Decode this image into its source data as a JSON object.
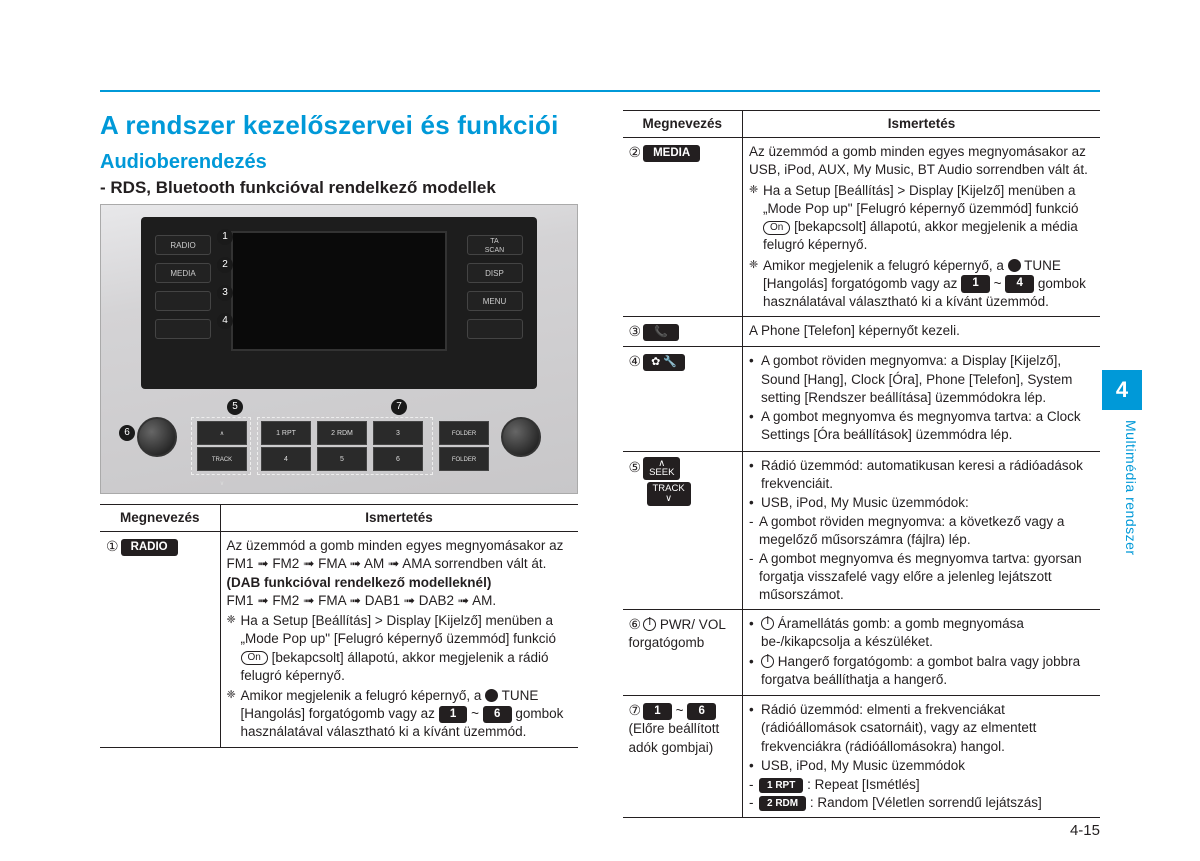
{
  "title": "A rendszer kezelőszervei és funkciói",
  "subtitle": "Audioberendezés",
  "subtitle2": "- RDS, Bluetooth funkcióval rendelkező modellek",
  "header_name": "Megnevezés",
  "header_desc": "Ismertetés",
  "chapter": "4",
  "side_text": "Multimédia rendszer",
  "pagenum": "4-15",
  "photo_labels": {
    "radio": "RADIO",
    "media": "MEDIA",
    "ta": "TA\nSCAN",
    "disp": "DISP",
    "menu": "MENU"
  },
  "left_rows": [
    {
      "circ": "①",
      "label": "RADIO",
      "body": [
        {
          "t": "p",
          "v": "Az üzemmód a gomb minden egyes megnyomásakor az FM1 ➟ FM2 ➟ FMA ➟ AM ➟ AMA sorrendben vált át."
        },
        {
          "t": "b",
          "v": "(DAB funkcióval rendelkező modelleknél)"
        },
        {
          "t": "p",
          "v": "FM1 ➟ FM2 ➟ FMA ➟ DAB1 ➟ DAB2 ➟ AM."
        },
        {
          "t": "note",
          "v": "Ha a Setup [Beállítás] > Display [Kijelző] menüben a „Mode Pop up\" [Felugró képernyő üzemmód] funkció <on>On</on> [bekapcsolt] állapotú, akkor megjelenik a rádió felugró képernyő."
        },
        {
          "t": "note",
          "v": "Amikor megjelenik a felugró képernyő, a <tune></tune> TUNE [Hangolás] forgatógomb vagy az <k>1</k> ~ <k>6</k> gombok használatával választható ki a kívánt üzemmód."
        }
      ]
    }
  ],
  "right_rows": [
    {
      "circ": "②",
      "label": "MEDIA",
      "body": [
        {
          "t": "p",
          "v": "Az üzemmód a gomb minden egyes megnyomásakor az USB, iPod, AUX, My Music, BT Audio sorrendben vált át."
        },
        {
          "t": "note",
          "v": "Ha a Setup [Beállítás] > Display [Kijelző] menüben a „Mode Pop up\" [Felugró képernyő üzemmód] funkció <on>On</on> [bekapcsolt] állapotú, akkor megjelenik a média felugró képernyő."
        },
        {
          "t": "note",
          "v": "Amikor megjelenik a felugró képernyő, a <tune></tune> TUNE [Hangolás] forgatógomb vagy az <k>1</k> ~ <k>4</k> gombok használatával választható ki a kívánt üzemmód."
        }
      ]
    },
    {
      "circ": "③",
      "icon": "phone",
      "body": [
        {
          "t": "p",
          "v": "A Phone [Telefon] képernyőt kezeli."
        }
      ]
    },
    {
      "circ": "④",
      "icon": "setup",
      "body": [
        {
          "t": "ul",
          "items": [
            "A gombot röviden megnyomva: a Display [Kijelző], Sound [Hang], Clock [Óra], Phone [Telefon], System setting [Rendszer beállítása] üzemmódokra lép.",
            "A gombot megnyomva és megnyomva tartva: a Clock Settings [Óra beállítások] üzemmódra lép."
          ]
        }
      ]
    },
    {
      "circ": "⑤",
      "seek": true,
      "body": [
        {
          "t": "ul",
          "items": [
            "Rádió üzemmód: automatikusan keresi a rádióadások frekvenciáit.",
            "USB, iPod, My Music üzemmódok:"
          ]
        },
        {
          "t": "dash",
          "items": [
            "A gombot röviden megnyomva: a következő vagy a megelőző műsorszámra (fájlra) lép.",
            "A gombot megnyomva és megnyomva tartva: gyorsan forgatja visszafelé vagy előre a jelenleg lejátszott műsorszámot."
          ]
        }
      ]
    },
    {
      "circ": "⑥",
      "pwr": true,
      "pwr_label": " PWR/ VOL for­gató­gomb",
      "body": [
        {
          "t": "ul_pwr",
          "items": [
            "<pwr></pwr> Áramellátás gomb: a gomb megnyomása be-/kikapcsolja a készüléket.",
            "<pwr></pwr> Hangerő forgatógomb: a gombot balra vagy jobbra forgatva beállíthatja a hangerő."
          ]
        }
      ]
    },
    {
      "circ": "⑦",
      "preset": true,
      "preset_label": "(Előre beállított adók gombjai)",
      "body": [
        {
          "t": "ul",
          "items": [
            "Rádió üzemmód: elmenti a frekvenciákat (rádióállomások csatornáit), vagy az elmentett frekvenciákra (rádióállomásokra) hangol.",
            "USB, iPod, My Music üzemmódok"
          ]
        },
        {
          "t": "dash_k",
          "items": [
            {
              "k": "1 RPT",
              "v": ": Repeat [Ismétlés]"
            },
            {
              "k": "2 RDM",
              "v": ": Random [Véletlen sorrendű lejátszás]"
            }
          ]
        }
      ]
    }
  ]
}
